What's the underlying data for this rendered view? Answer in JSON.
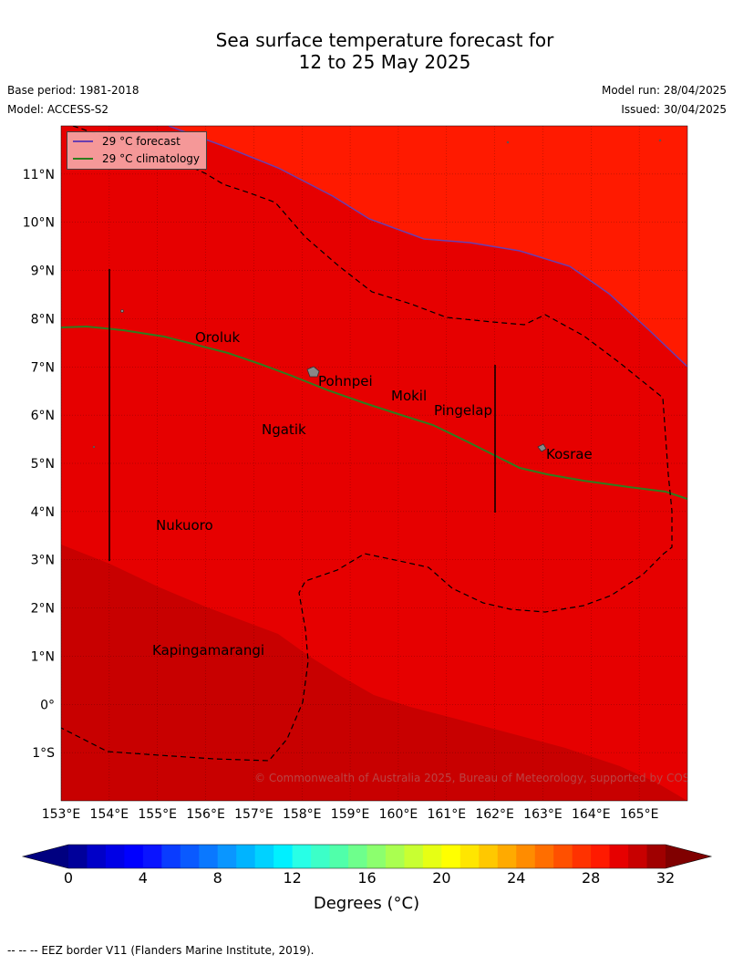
{
  "header": {
    "title_line1": "Sea surface temperature forecast for",
    "title_line2": "12 to 25 May 2025",
    "base_period": "Base period: 1981-2018",
    "model": "Model: ACCESS-S2",
    "model_run": "Model run: 28/04/2025",
    "issued": "Issued: 30/04/2025"
  },
  "legend": {
    "forecast": "29 °C  forecast",
    "climatology": "29 °C  climatology",
    "forecast_color": "#6a3fb0",
    "climatology_color": "#2e7d1e"
  },
  "map": {
    "lon_range": [
      153,
      166
    ],
    "lat_range": [
      -2,
      12
    ],
    "lon_labels": [
      "153°E",
      "154°E",
      "155°E",
      "156°E",
      "157°E",
      "158°E",
      "159°E",
      "160°E",
      "161°E",
      "162°E",
      "163°E",
      "164°E",
      "165°E"
    ],
    "lat_labels": [
      "11°N",
      "10°N",
      "9°N",
      "8°N",
      "7°N",
      "6°N",
      "5°N",
      "4°N",
      "3°N",
      "2°N",
      "1°N",
      "0°",
      "1°S"
    ],
    "places": [
      "Oroluk",
      "Pohnpei",
      "Mokil",
      "Pingelap",
      "Ngatik",
      "Kosrae",
      "Nukuoro",
      "Kapingamarangi"
    ],
    "copyright": "© Commonwealth of Australia 2025, Bureau of Meteorology, supported by COSPPac",
    "colors": {
      "warm_red": "#ff1a00",
      "mid_red": "#e60000",
      "dark_red": "#c80000"
    }
  },
  "colorbar": {
    "ticks": [
      "0",
      "4",
      "8",
      "12",
      "16",
      "20",
      "24",
      "28",
      "32"
    ],
    "label": "Degrees (°C)",
    "colors": [
      "#00009a",
      "#0000c8",
      "#0000e6",
      "#0000ff",
      "#0a14ff",
      "#0a3cff",
      "#0a5aff",
      "#0a78ff",
      "#0a96ff",
      "#00b4ff",
      "#00d2ff",
      "#00f0ff",
      "#28ffe6",
      "#3cffc8",
      "#50ffaa",
      "#6eff8c",
      "#8cff6e",
      "#aaff50",
      "#c8ff32",
      "#e6ff14",
      "#ffff00",
      "#ffe600",
      "#ffc800",
      "#ffaa00",
      "#ff8c00",
      "#ff6e00",
      "#ff5000",
      "#ff3200",
      "#ff1a00",
      "#e60000",
      "#c80000",
      "#a00000"
    ],
    "under_color": "#000080",
    "over_color": "#800000"
  },
  "footnote": "--  --  -- EEZ border V11 (Flanders Marine Institute, 2019)."
}
